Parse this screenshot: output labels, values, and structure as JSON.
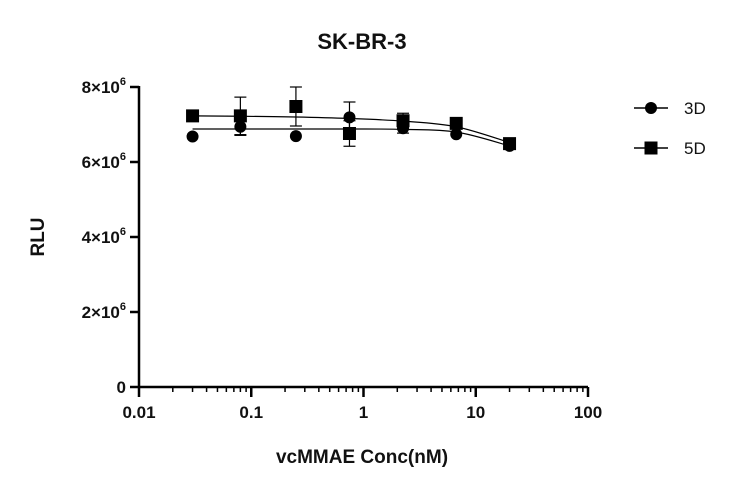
{
  "chart_data": {
    "type": "scatter",
    "title": "SK-BR-3",
    "xlabel": "vcMMAE Conc(nM)",
    "ylabel": "RLU",
    "xscale": "log",
    "xlim": [
      0.01,
      100
    ],
    "ylim": [
      0,
      8000000
    ],
    "x_ticks": [
      {
        "value": 0.01,
        "label": "0.01"
      },
      {
        "value": 0.1,
        "label": "0.1"
      },
      {
        "value": 1,
        "label": "1"
      },
      {
        "value": 10,
        "label": "10"
      },
      {
        "value": 100,
        "label": "100"
      }
    ],
    "y_ticks": [
      {
        "value": 0,
        "label": "0",
        "exp": ""
      },
      {
        "value": 2000000,
        "label": "2×10",
        "exp": "6"
      },
      {
        "value": 4000000,
        "label": "4×10",
        "exp": "6"
      },
      {
        "value": 6000000,
        "label": "6×10",
        "exp": "6"
      },
      {
        "value": 8000000,
        "label": "8×10",
        "exp": "6"
      }
    ],
    "grid": false,
    "legend_position": "right",
    "series": [
      {
        "name": "3D",
        "marker": "circle",
        "color": "#000000",
        "x": [
          0.03,
          0.08,
          0.25,
          0.75,
          2.25,
          6.7,
          20
        ],
        "y": [
          6680000,
          6940000,
          6690000,
          7190000,
          6900000,
          6740000,
          6430000
        ],
        "err": [
          0,
          230000,
          0,
          410000,
          130000,
          0,
          0
        ],
        "fit_y": [
          6880000,
          6880000,
          6880000,
          6880000,
          6870000,
          6800000,
          6430000
        ]
      },
      {
        "name": "5D",
        "marker": "square",
        "color": "#000000",
        "x": [
          0.03,
          0.08,
          0.25,
          0.75,
          2.25,
          6.7,
          20
        ],
        "y": [
          7230000,
          7230000,
          7480000,
          6760000,
          7100000,
          7030000,
          6490000
        ],
        "err": [
          0,
          500000,
          520000,
          340000,
          200000,
          0,
          0
        ],
        "fit_y": [
          7230000,
          7220000,
          7200000,
          7160000,
          7090000,
          6940000,
          6520000
        ]
      }
    ]
  }
}
